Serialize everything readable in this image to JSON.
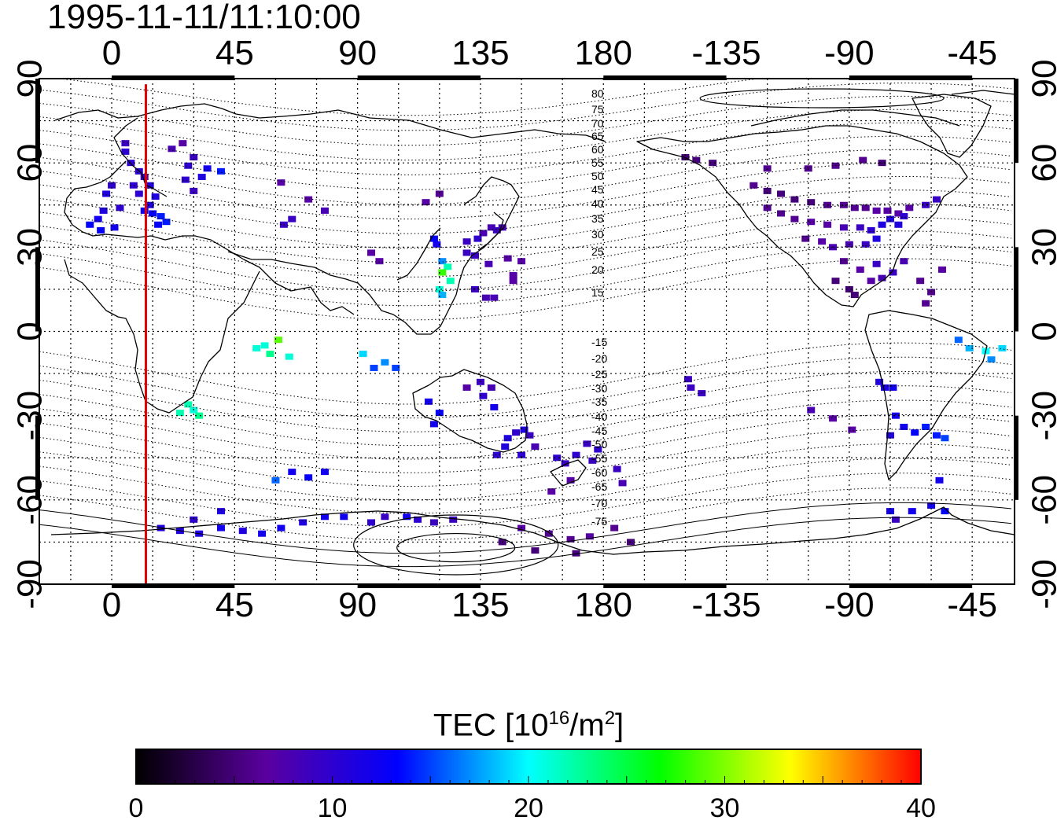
{
  "timestamp": "1995-11-11/11:10:00",
  "map": {
    "projection": "equirectangular",
    "lon_ticks": [
      0,
      45,
      90,
      135,
      180,
      -135,
      -90,
      -45
    ],
    "lon_tick_labels": [
      "0",
      "45",
      "90",
      "135",
      "180",
      "-135",
      "-90",
      "-45"
    ],
    "lat_ticks": [
      90,
      60,
      30,
      0,
      -30,
      -60,
      -90
    ],
    "lat_tick_labels": [
      "90",
      "60",
      "30",
      "0",
      "-30",
      "-60",
      "-90"
    ],
    "grid": "dotted every 15 degrees",
    "coastlines": true,
    "highlight_meridian_lon": 12.5,
    "highlight_color": "#e00000",
    "magnetic_latitude_contours": [
      "80",
      "75",
      "70",
      "65",
      "60",
      "55",
      "50",
      "45",
      "40",
      "35",
      "30",
      "25",
      "20",
      "15",
      "-15",
      "-20",
      "-25",
      "-30",
      "-35",
      "-40",
      "-45",
      "-50",
      "-55",
      "-60",
      "-65",
      "-70",
      "-75"
    ]
  },
  "colorbar": {
    "title_main": "TEC  [10",
    "title_exp": "16",
    "title_unit": "/m",
    "title_unit_exp": "2",
    "title_end": "]",
    "min": 0,
    "max": 40,
    "ticks": [
      "0",
      "10",
      "20",
      "30",
      "40"
    ],
    "colors": [
      "#000000",
      "#5a00a0",
      "#0000ff",
      "#00ffff",
      "#00ff00",
      "#ffff00",
      "#ff0000"
    ]
  },
  "tec_points": [
    [
      5,
      67,
      9
    ],
    [
      5,
      64,
      10
    ],
    [
      7,
      60,
      10
    ],
    [
      10,
      57,
      10
    ],
    [
      12,
      55,
      9
    ],
    [
      8,
      52,
      10
    ],
    [
      14,
      52,
      11
    ],
    [
      10,
      49,
      10
    ],
    [
      16,
      48,
      11
    ],
    [
      14,
      45,
      11
    ],
    [
      12,
      43,
      12
    ],
    [
      15,
      42,
      13
    ],
    [
      18,
      41,
      14
    ],
    [
      20,
      39,
      14
    ],
    [
      17,
      38,
      13
    ],
    [
      3,
      44,
      10
    ],
    [
      -3,
      43,
      11
    ],
    [
      -5,
      40,
      12
    ],
    [
      -8,
      38,
      13
    ],
    [
      -4,
      36,
      13
    ],
    [
      1,
      37,
      12
    ],
    [
      -2,
      49,
      11
    ],
    [
      0,
      52,
      10
    ],
    [
      22,
      65,
      8
    ],
    [
      26,
      67,
      7
    ],
    [
      30,
      62,
      9
    ],
    [
      28,
      59,
      10
    ],
    [
      35,
      58,
      12
    ],
    [
      40,
      57,
      14
    ],
    [
      33,
      55,
      11
    ],
    [
      27,
      54,
      10
    ],
    [
      30,
      50,
      9
    ],
    [
      62,
      53,
      7
    ],
    [
      72,
      47,
      7
    ],
    [
      78,
      43,
      8
    ],
    [
      66,
      40,
      9
    ],
    [
      63,
      38,
      9
    ],
    [
      95,
      28,
      7
    ],
    [
      98,
      25,
      7
    ],
    [
      115,
      46,
      7
    ],
    [
      120,
      49,
      6
    ],
    [
      121,
      25,
      17
    ],
    [
      123,
      23,
      22
    ],
    [
      121,
      21,
      28
    ],
    [
      124,
      18,
      22
    ],
    [
      120,
      15,
      21
    ],
    [
      121,
      13,
      18
    ],
    [
      119,
      31,
      12
    ],
    [
      118,
      33,
      13
    ],
    [
      130,
      32,
      9
    ],
    [
      134,
      33,
      10
    ],
    [
      136,
      35,
      8
    ],
    [
      139,
      37,
      8
    ],
    [
      141,
      36,
      9
    ],
    [
      143,
      37,
      8
    ],
    [
      130,
      28,
      9
    ],
    [
      133,
      27,
      9
    ],
    [
      138,
      24,
      8
    ],
    [
      145,
      26,
      7
    ],
    [
      150,
      25,
      7
    ],
    [
      147,
      20,
      7
    ],
    [
      133,
      15,
      9
    ],
    [
      137,
      12,
      8
    ],
    [
      140,
      12,
      8
    ],
    [
      147,
      18,
      7
    ],
    [
      56,
      -5,
      21
    ],
    [
      58,
      -8,
      23
    ],
    [
      61,
      -3,
      29
    ],
    [
      53,
      -6,
      21
    ],
    [
      65,
      -9,
      21
    ],
    [
      92,
      -8,
      19
    ],
    [
      96,
      -13,
      15
    ],
    [
      100,
      -11,
      17
    ],
    [
      104,
      -13,
      15
    ],
    [
      28,
      -26,
      22
    ],
    [
      30,
      -28,
      21
    ],
    [
      25,
      -29,
      22
    ],
    [
      32,
      -30,
      23
    ],
    [
      116,
      -25,
      12
    ],
    [
      120,
      -29,
      13
    ],
    [
      118,
      -33,
      12
    ],
    [
      130,
      -20,
      7
    ],
    [
      135,
      -18,
      9
    ],
    [
      139,
      -20,
      8
    ],
    [
      136,
      -23,
      10
    ],
    [
      140,
      -27,
      12
    ],
    [
      145,
      -38,
      11
    ],
    [
      148,
      -36,
      10
    ],
    [
      151,
      -35,
      11
    ],
    [
      153,
      -37,
      9
    ],
    [
      144,
      -41,
      11
    ],
    [
      141,
      -44,
      10
    ],
    [
      150,
      -44,
      10
    ],
    [
      155,
      -41,
      8
    ],
    [
      163,
      -45,
      10
    ],
    [
      166,
      -47,
      9
    ],
    [
      170,
      -44,
      10
    ],
    [
      174,
      -40,
      9
    ],
    [
      178,
      -42,
      10
    ],
    [
      176,
      -46,
      9
    ],
    [
      168,
      -53,
      7
    ],
    [
      161,
      -57,
      7
    ],
    [
      185,
      -49,
      9
    ],
    [
      187,
      -54,
      8
    ],
    [
      -149,
      -17,
      9
    ],
    [
      -148,
      -20,
      9
    ],
    [
      -144,
      -22,
      9
    ],
    [
      -104,
      -28,
      8
    ],
    [
      -96,
      -31,
      7
    ],
    [
      -89,
      -35,
      7
    ],
    [
      -79,
      -18,
      11
    ],
    [
      -77,
      -20,
      11
    ],
    [
      -74,
      -20,
      12
    ],
    [
      -73,
      -30,
      12
    ],
    [
      -70,
      -34,
      12
    ],
    [
      -66,
      -36,
      13
    ],
    [
      -62,
      -34,
      14
    ],
    [
      -58,
      -37,
      14
    ],
    [
      -55,
      -38,
      15
    ],
    [
      -75,
      -37,
      11
    ],
    [
      -57,
      -53,
      12
    ],
    [
      -60,
      -62,
      12
    ],
    [
      -67,
      -64,
      12
    ],
    [
      -75,
      -64,
      12
    ],
    [
      -73,
      -67,
      9
    ],
    [
      -55,
      -64,
      13
    ],
    [
      -50,
      -3,
      16
    ],
    [
      -46,
      -6,
      18
    ],
    [
      -40,
      -7,
      20
    ],
    [
      -38,
      -10,
      17
    ],
    [
      -34,
      -6,
      19
    ],
    [
      -150,
      62,
      5
    ],
    [
      -146,
      61,
      5
    ],
    [
      -140,
      60,
      5
    ],
    [
      -120,
      58,
      6
    ],
    [
      -105,
      58,
      6
    ],
    [
      -95,
      59,
      6
    ],
    [
      -85,
      61,
      6
    ],
    [
      -78,
      60,
      5
    ],
    [
      -125,
      52,
      6
    ],
    [
      -120,
      50,
      5
    ],
    [
      -115,
      49,
      5
    ],
    [
      -110,
      47,
      5
    ],
    [
      -104,
      46,
      5
    ],
    [
      -98,
      45,
      6
    ],
    [
      -92,
      45,
      6
    ],
    [
      -88,
      44,
      6
    ],
    [
      -84,
      44,
      6
    ],
    [
      -80,
      43,
      7
    ],
    [
      -76,
      43,
      7
    ],
    [
      -72,
      42,
      7
    ],
    [
      -68,
      44,
      7
    ],
    [
      -62,
      45,
      9
    ],
    [
      -58,
      47,
      9
    ],
    [
      -120,
      44,
      6
    ],
    [
      -115,
      42,
      6
    ],
    [
      -110,
      40,
      6
    ],
    [
      -104,
      39,
      7
    ],
    [
      -98,
      38,
      7
    ],
    [
      -92,
      37,
      8
    ],
    [
      -86,
      37,
      9
    ],
    [
      -82,
      36,
      10
    ],
    [
      -78,
      38,
      11
    ],
    [
      -75,
      40,
      11
    ],
    [
      -72,
      38,
      11
    ],
    [
      -70,
      41,
      10
    ],
    [
      -80,
      33,
      11
    ],
    [
      -84,
      31,
      9
    ],
    [
      -90,
      31,
      8
    ],
    [
      -96,
      30,
      8
    ],
    [
      -100,
      32,
      7
    ],
    [
      -106,
      33,
      6
    ],
    [
      -92,
      25,
      6
    ],
    [
      -86,
      22,
      7
    ],
    [
      -80,
      24,
      9
    ],
    [
      -78,
      19,
      8
    ],
    [
      -82,
      18,
      7
    ],
    [
      -90,
      15,
      5
    ],
    [
      -95,
      18,
      5
    ],
    [
      -88,
      13,
      5
    ],
    [
      -60,
      14,
      6
    ],
    [
      -64,
      18,
      6
    ],
    [
      -70,
      25,
      8
    ],
    [
      -74,
      21,
      9
    ],
    [
      -62,
      10,
      6
    ],
    [
      -56,
      22,
      7
    ],
    [
      18,
      -70,
      11
    ],
    [
      25,
      -71,
      11
    ],
    [
      32,
      -72,
      11
    ],
    [
      40,
      -70,
      12
    ],
    [
      48,
      -71,
      11
    ],
    [
      55,
      -72,
      12
    ],
    [
      62,
      -70,
      12
    ],
    [
      70,
      -68,
      11
    ],
    [
      78,
      -66,
      12
    ],
    [
      85,
      -66,
      12
    ],
    [
      95,
      -68,
      10
    ],
    [
      100,
      -66,
      9
    ],
    [
      108,
      -66,
      12
    ],
    [
      112,
      -67,
      10
    ],
    [
      118,
      -68,
      9
    ],
    [
      125,
      -67,
      9
    ],
    [
      150,
      -70,
      7
    ],
    [
      160,
      -72,
      6
    ],
    [
      168,
      -74,
      6
    ],
    [
      175,
      -73,
      7
    ],
    [
      184,
      -70,
      6
    ],
    [
      190,
      -75,
      5
    ],
    [
      143,
      -75,
      5
    ],
    [
      155,
      -78,
      5
    ],
    [
      170,
      -79,
      5
    ],
    [
      60,
      -53,
      16
    ],
    [
      72,
      -52,
      13
    ],
    [
      78,
      -50,
      12
    ],
    [
      66,
      -50,
      12
    ],
    [
      30,
      -67,
      10
    ],
    [
      40,
      -64,
      11
    ]
  ]
}
